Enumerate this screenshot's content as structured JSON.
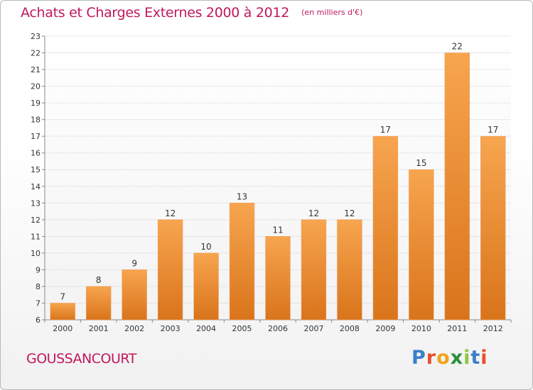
{
  "header": {
    "title": "Achats et Charges Externes 2000 à 2012",
    "subtitle": "(en milliers d'€)"
  },
  "footer": {
    "commune": "GOUSSANCOURT",
    "logo_text": "Proxiti"
  },
  "colors": {
    "title": "#c0185b",
    "bar_top": "#f7a54f",
    "bar_bottom": "#d9741b",
    "grid": "#cfcfcf",
    "axis_text": "#333333"
  },
  "chart_data": {
    "type": "bar",
    "categories": [
      "2000",
      "2001",
      "2002",
      "2003",
      "2004",
      "2005",
      "2006",
      "2007",
      "2008",
      "2009",
      "2010",
      "2011",
      "2012"
    ],
    "values": [
      7,
      8,
      9,
      12,
      10,
      13,
      11,
      12,
      12,
      17,
      15,
      22,
      17
    ],
    "ylim": [
      6,
      23
    ],
    "yticks": [
      6,
      7,
      8,
      9,
      10,
      11,
      12,
      13,
      14,
      15,
      16,
      17,
      18,
      19,
      20,
      21,
      22,
      23
    ],
    "grid": true,
    "data_labels": true
  }
}
